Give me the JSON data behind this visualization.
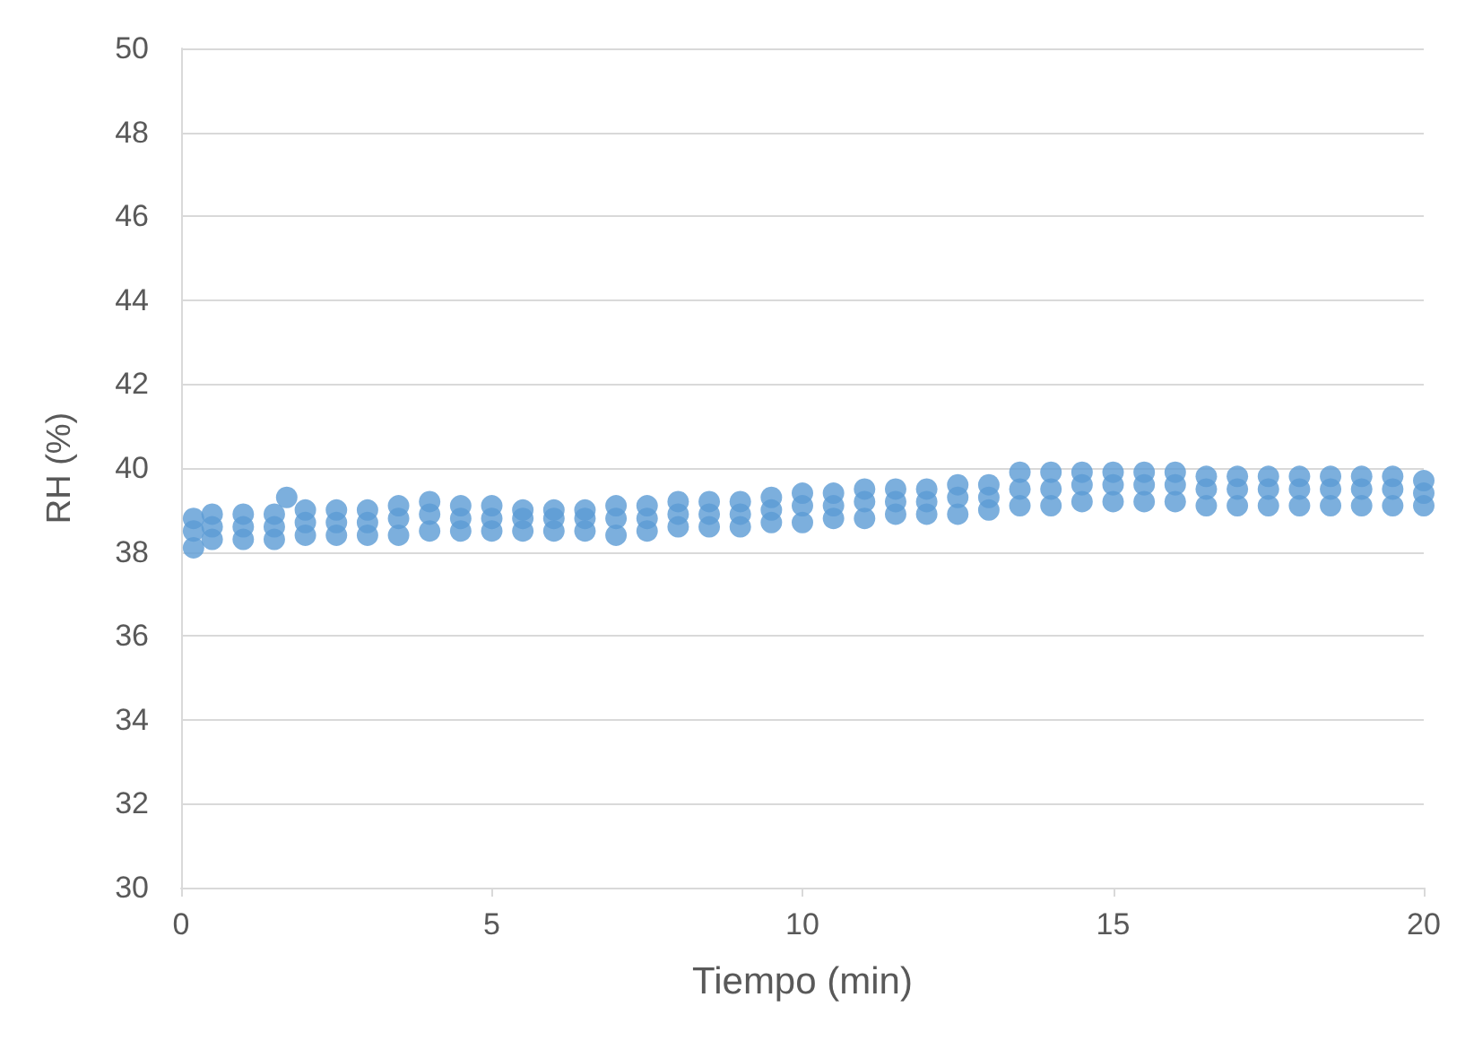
{
  "chart_data": {
    "type": "scatter",
    "xlabel": "Tiempo (min)",
    "ylabel": "RH (%)",
    "xlim": [
      0,
      20
    ],
    "ylim": [
      30,
      50
    ],
    "xticks": [
      0,
      5,
      10,
      15,
      20
    ],
    "yticks": [
      30,
      32,
      34,
      36,
      38,
      40,
      42,
      44,
      46,
      48,
      50
    ],
    "grid": "y",
    "marker": "circle",
    "series": [
      {
        "color": "#5b9bd5",
        "x": [
          0.2,
          0.5,
          1,
          1.5,
          2,
          2.5,
          3,
          3.5,
          4,
          4.5,
          5,
          5.5,
          6,
          6.5,
          7,
          7.5,
          8,
          8.5,
          9,
          9.5,
          10,
          10.5,
          11,
          11.5,
          12,
          12.5,
          13,
          13.5,
          14,
          14.5,
          15,
          15.5,
          16,
          16.5,
          17,
          17.5,
          18,
          18.5,
          19,
          19.5,
          20,
          0.2,
          0.5,
          1,
          1.5,
          2,
          2.5,
          3,
          3.5,
          4,
          4.5,
          5,
          5.5,
          6,
          6.5,
          7,
          7.5,
          8,
          8.5,
          9,
          9.5,
          10,
          10.5,
          11,
          11.5,
          12,
          12.5,
          13,
          13.5,
          14,
          14.5,
          15,
          15.5,
          16,
          16.5,
          17,
          17.5,
          18,
          18.5,
          19,
          19.5,
          20,
          0.2,
          0.5,
          1,
          1.5,
          2,
          2.5,
          3,
          3.5,
          4,
          4.5,
          5,
          5.5,
          6,
          6.5,
          7,
          7.5,
          8,
          8.5,
          9,
          9.5,
          10,
          10.5,
          11,
          11.5,
          12,
          12.5,
          13,
          13.5,
          14,
          14.5,
          15,
          15.5,
          16,
          16.5,
          17,
          17.5,
          18,
          18.5,
          19,
          19.5,
          20,
          1.7
        ],
        "values": [
          38.8,
          38.9,
          38.9,
          38.9,
          39.0,
          39.0,
          39.0,
          39.1,
          39.2,
          39.1,
          39.1,
          39.0,
          39.0,
          39.0,
          39.1,
          39.1,
          39.2,
          39.2,
          39.2,
          39.3,
          39.4,
          39.4,
          39.5,
          39.5,
          39.5,
          39.6,
          39.6,
          39.9,
          39.9,
          39.9,
          39.9,
          39.9,
          39.9,
          39.8,
          39.8,
          39.8,
          39.8,
          39.8,
          39.8,
          39.8,
          39.7,
          38.1,
          38.3,
          38.3,
          38.3,
          38.4,
          38.4,
          38.4,
          38.4,
          38.5,
          38.5,
          38.5,
          38.5,
          38.5,
          38.5,
          38.4,
          38.5,
          38.6,
          38.6,
          38.6,
          38.7,
          38.7,
          38.8,
          38.8,
          38.9,
          38.9,
          38.9,
          39.0,
          39.1,
          39.1,
          39.2,
          39.2,
          39.2,
          39.2,
          39.1,
          39.1,
          39.1,
          39.1,
          39.1,
          39.1,
          39.1,
          39.1,
          38.5,
          38.6,
          38.6,
          38.6,
          38.7,
          38.7,
          38.7,
          38.8,
          38.9,
          38.8,
          38.8,
          38.8,
          38.8,
          38.8,
          38.8,
          38.8,
          38.9,
          38.9,
          38.9,
          39.0,
          39.1,
          39.1,
          39.2,
          39.2,
          39.2,
          39.3,
          39.3,
          39.5,
          39.5,
          39.6,
          39.6,
          39.6,
          39.6,
          39.5,
          39.5,
          39.5,
          39.5,
          39.5,
          39.5,
          39.5,
          39.4,
          39.3
        ]
      }
    ]
  }
}
